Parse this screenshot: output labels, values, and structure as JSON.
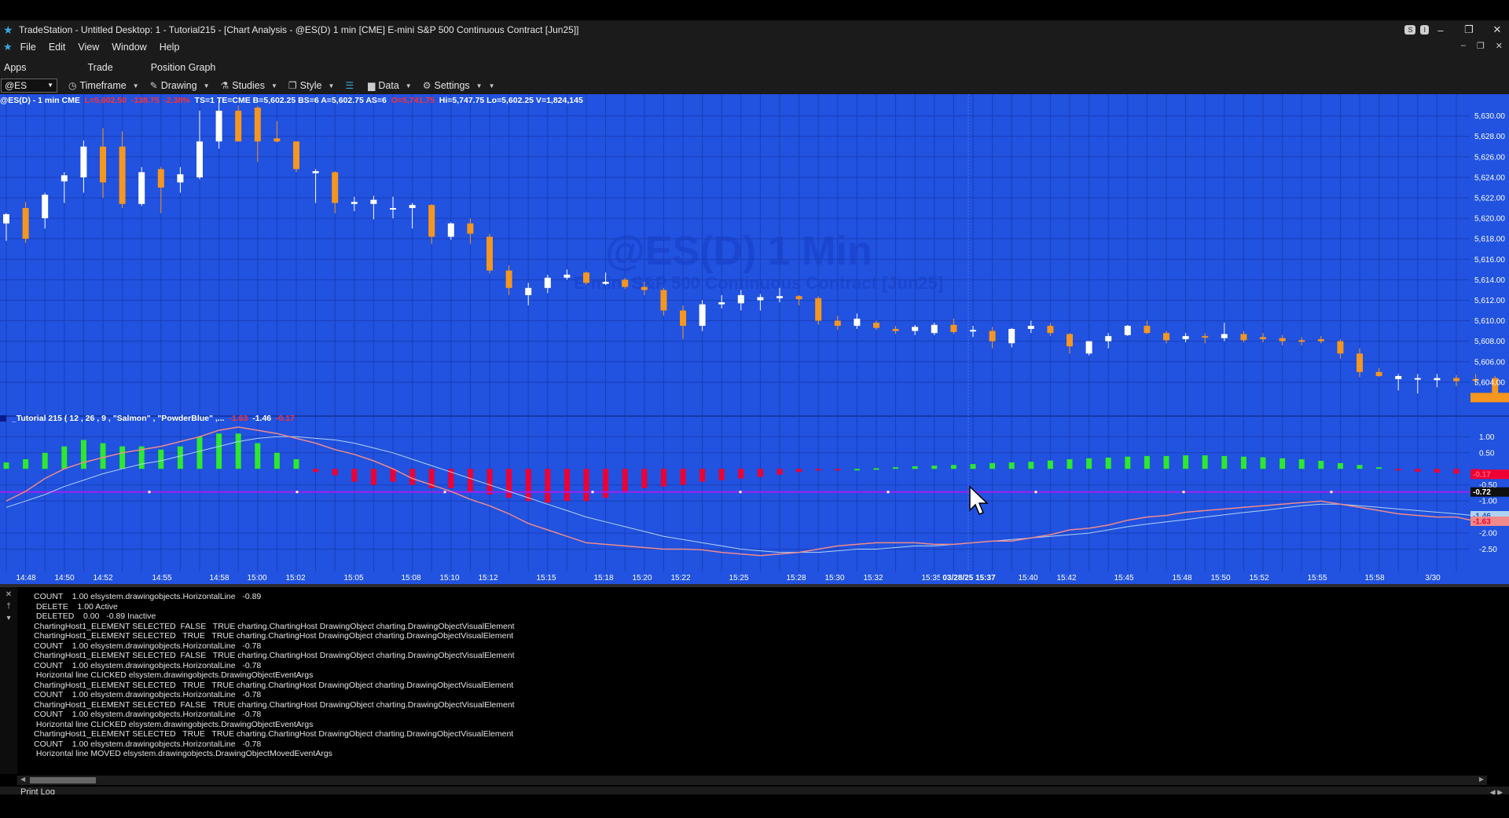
{
  "window": {
    "title": "TradeStation  - Untitled Desktop: 1 - Tutorial215 - [Chart Analysis - @ES(D) 1 min [CME] E-mini S&P 500 Continuous Contract [Jun25]]",
    "badge_s": "S",
    "badge_i": "I",
    "minimize": "–",
    "restore": "❐",
    "close": "✕"
  },
  "menu": {
    "items": [
      "File",
      "Edit",
      "View",
      "Window",
      "Help"
    ],
    "doc_min": "–",
    "doc_restore": "❐",
    "doc_close": "✕"
  },
  "apps_bar": {
    "items": [
      "Apps",
      "Trade",
      "Position Graph"
    ]
  },
  "toolbar": {
    "symbol": "@ES",
    "timeframe": "Timeframe",
    "drawing": "Drawing",
    "studies": "Studies",
    "style": "Style",
    "data": "Data",
    "settings": "Settings"
  },
  "status": {
    "symbol": "@ES(D) - 1 min  CME",
    "last": "L=5,602.50",
    "net": "-138.75",
    "pct": "-2.38%",
    "fields": "TS=1  TE=CME  B=5,602.25  BS=6  A=5,602.75  AS=6",
    "change": "O=5,741.75",
    "range": "Hi=5,747.75  Lo=5,602.25  V=1,824,145"
  },
  "watermark": {
    "symbol": "@ES(D) 1 Min",
    "name": "E-mini S&P 500 Continuous Contract [Jun25]"
  },
  "indicator": {
    "label": "_Tutorial 215 ( 12 , 26 , 9 , \"Salmon\" , \"PowderBlue\" ,...",
    "v1": "-1.63",
    "v2": "-1.46",
    "v3": "-0.17"
  },
  "price_axis": [
    "5,630.00",
    "5,628.00",
    "5,626.00",
    "5,624.00",
    "5,622.00",
    "5,620.00",
    "5,618.00",
    "5,616.00",
    "5,614.00",
    "5,612.00",
    "5,610.00",
    "5,608.00",
    "5,606.00",
    "5,604.00"
  ],
  "price_tag": "5,602.50",
  "ind_axis": [
    "1.00",
    "0.50",
    "-0.50",
    "-1.00",
    "-2.00",
    "-2.50"
  ],
  "ind_tags": {
    "zero": "-0.17",
    "line": "-0.72",
    "macd_a": "-1.46",
    "macd_b": "-1.63"
  },
  "time_axis": [
    "14:48",
    "14:50",
    "14:52",
    "14:55",
    "14:58",
    "15:00",
    "15:02",
    "15:05",
    "15:08",
    "15:10",
    "15:12",
    "15:15",
    "15:18",
    "15:20",
    "15:22",
    "15:25",
    "15:28",
    "15:30",
    "15:32",
    "15:35",
    "15:40",
    "15:42",
    "15:45",
    "15:48",
    "15:50",
    "15:52",
    "15:55",
    "15:58",
    "3/30"
  ],
  "cursor_time": "03/28/25 15:37",
  "chart_data": {
    "type": "candlestick",
    "bar_interval": "1 min",
    "candles": [
      [
        5619.5,
        5620.5,
        5617.8,
        5620.4
      ],
      [
        5621.0,
        5621.6,
        5617.6,
        5618.0
      ],
      [
        5620.0,
        5622.5,
        5619.0,
        5622.3
      ],
      [
        5623.6,
        5624.5,
        5621.5,
        5624.2
      ],
      [
        5624.0,
        5627.6,
        5622.5,
        5627.0
      ],
      [
        5627.0,
        5628.8,
        5622.0,
        5623.5
      ],
      [
        5627.0,
        5628.5,
        5621.0,
        5621.4
      ],
      [
        5621.4,
        5625.0,
        5621.2,
        5624.5
      ],
      [
        5624.8,
        5625.0,
        5620.5,
        5623.0
      ],
      [
        5623.5,
        5625.0,
        5622.5,
        5624.3
      ],
      [
        5624.0,
        5630.5,
        5623.8,
        5627.5
      ],
      [
        5627.5,
        5631.5,
        5626.8,
        5630.5
      ],
      [
        5630.5,
        5631.0,
        5627.5,
        5627.5
      ],
      [
        5630.8,
        5631.0,
        5625.5,
        5627.5
      ],
      [
        5627.8,
        5629.5,
        5627.4,
        5627.5
      ],
      [
        5627.5,
        5627.5,
        5624.5,
        5624.8
      ],
      [
        5624.4,
        5624.8,
        5621.5,
        5624.6
      ],
      [
        5624.5,
        5624.6,
        5620.5,
        5621.5
      ],
      [
        5621.4,
        5622.1,
        5620.7,
        5621.6
      ],
      [
        5621.4,
        5622.2,
        5619.9,
        5621.8
      ],
      [
        5621.0,
        5622.1,
        5620.0,
        5621.0
      ],
      [
        5621.0,
        5621.5,
        5619.0,
        5621.3
      ],
      [
        5621.3,
        5621.4,
        5617.5,
        5618.2
      ],
      [
        5618.2,
        5619.6,
        5617.9,
        5619.5
      ],
      [
        5619.5,
        5620.0,
        5617.5,
        5618.5
      ],
      [
        5618.2,
        5618.5,
        5614.6,
        5614.9
      ],
      [
        5614.9,
        5615.4,
        5612.5,
        5613.2
      ],
      [
        5612.5,
        5613.7,
        5611.5,
        5613.2
      ],
      [
        5613.2,
        5614.5,
        5612.7,
        5614.2
      ],
      [
        5614.2,
        5615.0,
        5614.0,
        5614.5
      ],
      [
        5614.7,
        5614.8,
        5613.5,
        5613.7
      ],
      [
        5613.6,
        5614.7,
        5613.5,
        5613.8
      ],
      [
        5614.0,
        5614.2,
        5613.1,
        5613.3
      ],
      [
        5613.3,
        5613.8,
        5612.5,
        5613.0
      ],
      [
        5613.0,
        5613.2,
        5610.5,
        5611.0
      ],
      [
        5611.0,
        5611.5,
        5608.2,
        5609.5
      ],
      [
        5609.5,
        5612.0,
        5609.0,
        5611.6
      ],
      [
        5611.6,
        5612.5,
        5611.2,
        5611.8
      ],
      [
        5611.7,
        5613.0,
        5611.0,
        5612.5
      ],
      [
        5612.0,
        5612.6,
        5611.0,
        5612.3
      ],
      [
        5612.2,
        5613.2,
        5611.8,
        5612.4
      ],
      [
        5612.4,
        5612.5,
        5611.5,
        5612.1
      ],
      [
        5612.2,
        5612.4,
        5609.6,
        5610.0
      ],
      [
        5610.0,
        5610.5,
        5609.1,
        5609.5
      ],
      [
        5609.5,
        5610.7,
        5609.2,
        5610.2
      ],
      [
        5609.8,
        5610.0,
        5609.1,
        5609.3
      ],
      [
        5609.2,
        5609.5,
        5608.7,
        5609.0
      ],
      [
        5609.0,
        5609.6,
        5608.6,
        5609.4
      ],
      [
        5608.8,
        5609.8,
        5608.6,
        5609.6
      ],
      [
        5609.6,
        5610.2,
        5608.7,
        5608.9
      ],
      [
        5609.0,
        5609.5,
        5608.4,
        5609.1
      ],
      [
        5609.0,
        5609.4,
        5607.3,
        5608.0
      ],
      [
        5607.8,
        5609.3,
        5607.4,
        5609.2
      ],
      [
        5609.2,
        5610.0,
        5608.8,
        5609.5
      ],
      [
        5609.5,
        5609.8,
        5608.5,
        5608.8
      ],
      [
        5608.7,
        5608.8,
        5606.8,
        5607.5
      ],
      [
        5606.8,
        5608.0,
        5606.6,
        5608.0
      ],
      [
        5608.0,
        5608.8,
        5607.3,
        5608.5
      ],
      [
        5608.6,
        5609.6,
        5608.5,
        5609.5
      ],
      [
        5609.5,
        5610.0,
        5608.7,
        5608.8
      ],
      [
        5608.8,
        5609.0,
        5607.8,
        5608.1
      ],
      [
        5608.2,
        5608.8,
        5607.9,
        5608.5
      ],
      [
        5608.5,
        5608.8,
        5607.8,
        5608.4
      ],
      [
        5608.3,
        5609.8,
        5608.0,
        5608.7
      ],
      [
        5608.7,
        5609.0,
        5607.9,
        5608.1
      ],
      [
        5608.4,
        5608.8,
        5607.9,
        5608.2
      ],
      [
        5608.3,
        5608.6,
        5607.6,
        5608.0
      ],
      [
        5608.1,
        5608.4,
        5607.6,
        5608.0
      ],
      [
        5608.2,
        5608.5,
        5607.8,
        5608.0
      ],
      [
        5608.0,
        5608.2,
        5606.3,
        5606.8
      ],
      [
        5606.8,
        5607.3,
        5604.5,
        5605.0
      ],
      [
        5605.0,
        5605.4,
        5604.5,
        5604.6
      ],
      [
        5604.3,
        5604.8,
        5603.2,
        5604.6
      ],
      [
        5604.3,
        5604.8,
        5602.9,
        5604.4
      ],
      [
        5604.2,
        5604.8,
        5603.5,
        5604.4
      ],
      [
        5604.4,
        5604.7,
        5603.6,
        5604.1
      ],
      [
        5604.3,
        5604.8,
        5603.7,
        5604.2
      ],
      [
        5604.4,
        5604.6,
        5602.3,
        5602.5
      ]
    ],
    "histogram": [
      0.2,
      0.3,
      0.5,
      0.7,
      0.9,
      0.8,
      0.7,
      0.7,
      0.6,
      0.7,
      1.0,
      1.1,
      1.1,
      0.8,
      0.5,
      0.3,
      -0.1,
      -0.2,
      -0.4,
      -0.5,
      -0.4,
      -0.5,
      -0.6,
      -0.6,
      -0.7,
      -0.8,
      -0.9,
      -1.0,
      -1.05,
      -1.0,
      -1.0,
      -0.9,
      -0.75,
      -0.6,
      -0.55,
      -0.5,
      -0.4,
      -0.35,
      -0.3,
      -0.25,
      -0.18,
      -0.1,
      -0.05,
      -0.02,
      0.0,
      0.02,
      0.05,
      0.08,
      0.1,
      0.12,
      0.15,
      0.18,
      0.2,
      0.22,
      0.26,
      0.3,
      0.33,
      0.35,
      0.38,
      0.4,
      0.4,
      0.42,
      0.42,
      0.4,
      0.38,
      0.36,
      0.33,
      0.3,
      0.25,
      0.18,
      0.12,
      0.05,
      -0.05,
      -0.09,
      -0.12,
      -0.15,
      -0.17
    ],
    "macd": [
      -1.0,
      -0.7,
      -0.3,
      0.0,
      0.2,
      0.35,
      0.5,
      0.6,
      0.7,
      0.85,
      1.0,
      1.2,
      1.3,
      1.2,
      1.1,
      0.95,
      0.8,
      0.6,
      0.45,
      0.25,
      0.0,
      -0.3,
      -0.5,
      -0.7,
      -0.95,
      -1.15,
      -1.4,
      -1.7,
      -1.9,
      -2.1,
      -2.3,
      -2.35,
      -2.4,
      -2.45,
      -2.5,
      -2.5,
      -2.52,
      -2.6,
      -2.65,
      -2.7,
      -2.65,
      -2.6,
      -2.5,
      -2.4,
      -2.35,
      -2.3,
      -2.3,
      -2.3,
      -2.35,
      -2.35,
      -2.3,
      -2.25,
      -2.25,
      -2.15,
      -2.05,
      -1.9,
      -1.85,
      -1.75,
      -1.6,
      -1.5,
      -1.45,
      -1.35,
      -1.3,
      -1.25,
      -1.2,
      -1.15,
      -1.1,
      -1.05,
      -1.0,
      -1.1,
      -1.2,
      -1.3,
      -1.4,
      -1.45,
      -1.5,
      -1.5,
      -1.63
    ],
    "signal": [
      -1.2,
      -1.0,
      -0.8,
      -0.55,
      -0.35,
      -0.15,
      0.0,
      0.15,
      0.25,
      0.4,
      0.55,
      0.7,
      0.85,
      0.95,
      1.0,
      1.0,
      0.95,
      0.9,
      0.8,
      0.65,
      0.5,
      0.3,
      0.1,
      -0.1,
      -0.3,
      -0.5,
      -0.7,
      -0.9,
      -1.1,
      -1.3,
      -1.5,
      -1.65,
      -1.8,
      -1.95,
      -2.1,
      -2.2,
      -2.3,
      -2.4,
      -2.5,
      -2.55,
      -2.6,
      -2.6,
      -2.6,
      -2.55,
      -2.5,
      -2.5,
      -2.45,
      -2.4,
      -2.4,
      -2.35,
      -2.3,
      -2.25,
      -2.2,
      -2.15,
      -2.1,
      -2.05,
      -2.0,
      -1.9,
      -1.8,
      -1.72,
      -1.65,
      -1.58,
      -1.5,
      -1.43,
      -1.36,
      -1.3,
      -1.22,
      -1.15,
      -1.1,
      -1.1,
      -1.15,
      -1.2,
      -1.25,
      -1.3,
      -1.35,
      -1.4,
      -1.46
    ],
    "horizontal_line": -0.72,
    "price_range": [
      5601.0,
      5631.5
    ],
    "indicator_range": [
      -3.0,
      1.35
    ]
  },
  "log": {
    "lines": [
      "COUNT    1.00 elsystem.drawingobjects.HorizontalLine   -0.89",
      " DELETE    1.00 Active",
      " DELETED    0.00   -0.89 Inactive",
      "ChartingHost1_ELEMENT SELECTED  FALSE   TRUE charting.ChartingHost DrawingObject charting.DrawingObjectVisualElement",
      "ChartingHost1_ELEMENT SELECTED   TRUE   TRUE charting.ChartingHost DrawingObject charting.DrawingObjectVisualElement",
      "COUNT    1.00 elsystem.drawingobjects.HorizontalLine   -0.78",
      "ChartingHost1_ELEMENT SELECTED  FALSE   TRUE charting.ChartingHost DrawingObject charting.DrawingObjectVisualElement",
      "COUNT    1.00 elsystem.drawingobjects.HorizontalLine   -0.78",
      " Horizontal line CLICKED elsystem.drawingobjects.DrawingObjectEventArgs",
      "ChartingHost1_ELEMENT SELECTED   TRUE   TRUE charting.ChartingHost DrawingObject charting.DrawingObjectVisualElement",
      "COUNT    1.00 elsystem.drawingobjects.HorizontalLine   -0.78",
      "ChartingHost1_ELEMENT SELECTED  FALSE   TRUE charting.ChartingHost DrawingObject charting.DrawingObjectVisualElement",
      "COUNT    1.00 elsystem.drawingobjects.HorizontalLine   -0.78",
      " Horizontal line CLICKED elsystem.drawingobjects.DrawingObjectEventArgs",
      "ChartingHost1_ELEMENT SELECTED   TRUE   TRUE charting.ChartingHost DrawingObject charting.DrawingObjectVisualElement",
      "COUNT    1.00 elsystem.drawingobjects.HorizontalLine   -0.78",
      " Horizontal line MOVED elsystem.drawingobjects.DrawingObjectMovedEventArgs"
    ],
    "tab": "Print Log",
    "gutter_close": "✕",
    "gutter_pin": "†",
    "gutter_menu": "▾",
    "tab_nav": "◀ ▶"
  },
  "colors": {
    "chart_bg": "#2152e0",
    "grid": "#1a3fb8",
    "up_candle": "#ffffff",
    "down_candle": "#f5961e",
    "hist_pos": "#2ee82e",
    "hist_neg": "#ee0033",
    "macd_line": "#f08a8a",
    "signal_line": "#b0d4f0",
    "h_line": "#a020f0"
  }
}
